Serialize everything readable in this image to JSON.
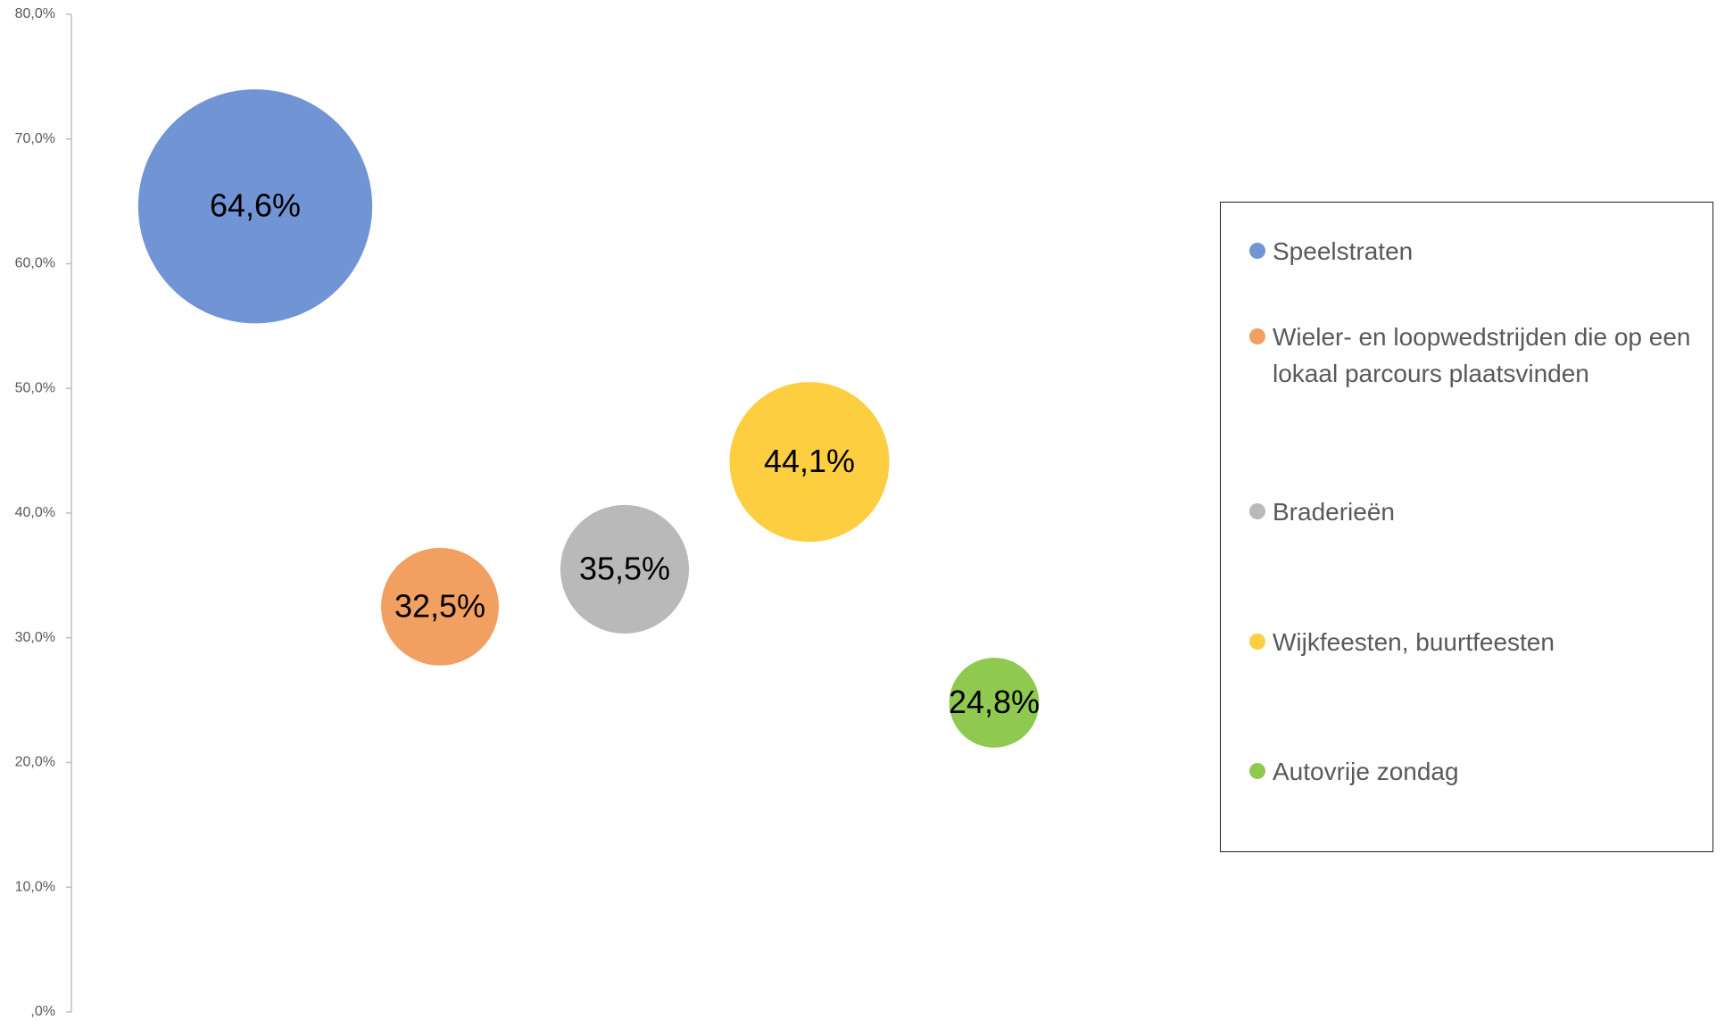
{
  "chart_data": {
    "type": "bubble",
    "series": [
      {
        "name": "Speelstraten",
        "color": "#7094d4",
        "values": [
          64.6
        ],
        "value_labels": [
          "64,6%"
        ]
      },
      {
        "name": "Wieler- en loopwedstrijden die op een lokaal parcours plaatsvinden",
        "color": "#f29f62",
        "values": [
          32.5
        ],
        "value_labels": [
          "32,5%"
        ]
      },
      {
        "name": "Braderieën",
        "color": "#b9b9b9",
        "values": [
          35.5
        ],
        "value_labels": [
          "35,5%"
        ]
      },
      {
        "name": "Wijkfeesten, buurtfeesten",
        "color": "#fdcf40",
        "values": [
          44.1
        ],
        "value_labels": [
          "44,1%"
        ]
      },
      {
        "name": "Autovrije zondag",
        "color": "#8fc94f",
        "values": [
          24.8
        ],
        "value_labels": [
          "24,8%"
        ]
      }
    ],
    "ylim": [
      0,
      80
    ],
    "yticks": [
      {
        "value": 0,
        "label": ",0%"
      },
      {
        "value": 10,
        "label": "10,0%"
      },
      {
        "value": 20,
        "label": "20,0%"
      },
      {
        "value": 30,
        "label": "30,0%"
      },
      {
        "value": 40,
        "label": "40,0%"
      },
      {
        "value": 50,
        "label": "50,0%"
      },
      {
        "value": 60,
        "label": "60,0%"
      },
      {
        "value": 70,
        "label": "70,0%"
      },
      {
        "value": 80,
        "label": "80,0%"
      }
    ],
    "legend": "right"
  }
}
